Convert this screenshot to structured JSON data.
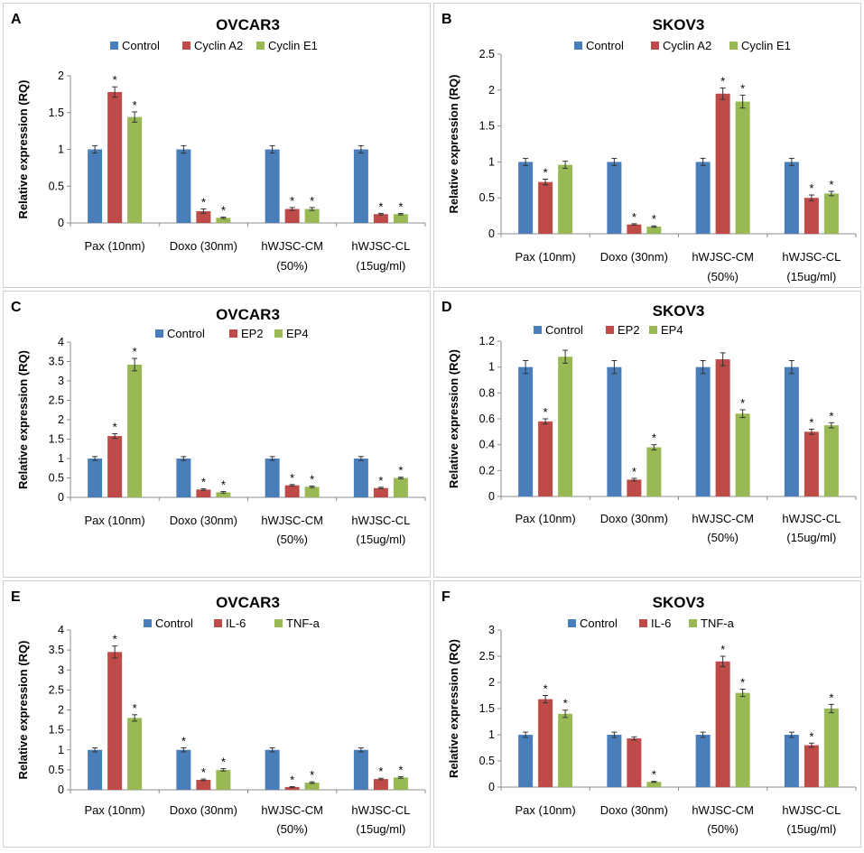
{
  "colors": {
    "Control": "#4A7EBB",
    "red": "#BE4B48",
    "green": "#98B954"
  },
  "categories": [
    [
      "Pax (10nm)"
    ],
    [
      "Doxo (30nm)"
    ],
    [
      "hWJSC-CM",
      "(50%)"
    ],
    [
      "hWJSC-CL",
      "(15ug/ml)"
    ]
  ],
  "chart_data": [
    {
      "letter": "A",
      "type": "bar",
      "title": "OVCAR3",
      "ylabel": "Relative expression (RQ)",
      "ylim": [
        0,
        2
      ],
      "ticks": [
        "0",
        "0.5",
        "1",
        "1.5",
        "2"
      ],
      "categories": [
        "Pax (10nm)",
        "Doxo (30nm)",
        "hWJSC-CM (50%)",
        "hWJSC-CL (15ug/ml)"
      ],
      "series": [
        {
          "name": "Control",
          "values": [
            1,
            1,
            1,
            1
          ],
          "err": [
            0.05,
            0.05,
            0.05,
            0.05
          ],
          "sig": [
            false,
            false,
            false,
            false
          ]
        },
        {
          "name": "Cyclin A2",
          "values": [
            1.78,
            0.16,
            0.19,
            0.12
          ],
          "err": [
            0.07,
            0.03,
            0.02,
            0.01
          ],
          "sig": [
            true,
            true,
            true,
            true
          ]
        },
        {
          "name": "Cyclin E1",
          "values": [
            1.44,
            0.07,
            0.19,
            0.12
          ],
          "err": [
            0.07,
            0.01,
            0.02,
            0.01
          ],
          "sig": [
            true,
            true,
            true,
            true
          ]
        }
      ]
    },
    {
      "letter": "B",
      "type": "bar",
      "title": "SKOV3",
      "ylabel": "Relative expression (RQ)",
      "ylim": [
        0,
        2.5
      ],
      "ticks": [
        "0",
        "0.5",
        "1",
        "1.5",
        "2",
        "2.5"
      ],
      "categories": [
        "Pax (10nm)",
        "Doxo (30nm)",
        "hWJSC-CM (50%)",
        "hWJSC-CL (15ug/ml)"
      ],
      "series": [
        {
          "name": "Control",
          "values": [
            1,
            1,
            1,
            1
          ],
          "err": [
            0.05,
            0.05,
            0.05,
            0.05
          ],
          "sig": [
            false,
            false,
            false,
            false
          ]
        },
        {
          "name": "Cyclin A2",
          "values": [
            0.72,
            0.13,
            1.95,
            0.5
          ],
          "err": [
            0.04,
            0.01,
            0.08,
            0.04
          ],
          "sig": [
            true,
            true,
            true,
            true
          ]
        },
        {
          "name": "Cyclin E1",
          "values": [
            0.96,
            0.1,
            1.84,
            0.56
          ],
          "err": [
            0.05,
            0.01,
            0.09,
            0.03
          ],
          "sig": [
            false,
            true,
            true,
            true
          ]
        }
      ]
    },
    {
      "letter": "C",
      "type": "bar",
      "title": "OVCAR3",
      "ylabel": "Relative expression (RQ)",
      "ylim": [
        0,
        4
      ],
      "ticks": [
        "0",
        "0.5",
        "1",
        "1.5",
        "2",
        "2.5",
        "3",
        "3.5",
        "4"
      ],
      "categories": [
        "Pax (10nm)",
        "Doxo (30nm)",
        "hWJSC-CM (50%)",
        "hWJSC-CL (15ug/ml)"
      ],
      "series": [
        {
          "name": "Control",
          "values": [
            1,
            1,
            1,
            1
          ],
          "err": [
            0.05,
            0.05,
            0.05,
            0.05
          ],
          "sig": [
            false,
            false,
            false,
            false
          ]
        },
        {
          "name": "EP2",
          "values": [
            1.58,
            0.2,
            0.31,
            0.24
          ],
          "err": [
            0.06,
            0.02,
            0.02,
            0.02
          ],
          "sig": [
            true,
            true,
            true,
            true
          ]
        },
        {
          "name": "EP4",
          "values": [
            3.42,
            0.13,
            0.27,
            0.5
          ],
          "err": [
            0.16,
            0.02,
            0.02,
            0.02
          ],
          "sig": [
            true,
            true,
            true,
            true
          ]
        }
      ]
    },
    {
      "letter": "D",
      "type": "bar",
      "title": "SKOV3",
      "ylabel": "Relative expression (RQ)",
      "ylim": [
        0,
        1.2
      ],
      "ticks": [
        "0",
        "0.2",
        "0.4",
        "0.6",
        "0.8",
        "1",
        "1.2"
      ],
      "categories": [
        "Pax (10nm)",
        "Doxo (30nm)",
        "hWJSC-CM (50%)",
        "hWJSC-CL (15ug/ml)"
      ],
      "series": [
        {
          "name": "Control",
          "values": [
            1,
            1,
            1,
            1
          ],
          "err": [
            0.05,
            0.05,
            0.05,
            0.05
          ],
          "sig": [
            false,
            false,
            false,
            false
          ]
        },
        {
          "name": "EP2",
          "values": [
            0.58,
            0.13,
            1.06,
            0.5
          ],
          "err": [
            0.02,
            0.01,
            0.05,
            0.02
          ],
          "sig": [
            true,
            true,
            false,
            true
          ]
        },
        {
          "name": "EP4",
          "values": [
            1.08,
            0.38,
            0.64,
            0.55
          ],
          "err": [
            0.05,
            0.02,
            0.03,
            0.02
          ],
          "sig": [
            false,
            true,
            true,
            true
          ]
        }
      ]
    },
    {
      "letter": "E",
      "type": "bar",
      "title": "OVCAR3",
      "ylabel": "Relative expression (RQ)",
      "ylim": [
        0,
        4
      ],
      "ticks": [
        "0",
        "0.5",
        "1",
        "1.5",
        "2",
        "2.5",
        "3",
        "3.5",
        "4"
      ],
      "categories": [
        "Pax (10nm)",
        "Doxo (30nm)",
        "hWJSC-CM (50%)",
        "hWJSC-CL (15ug/ml)"
      ],
      "series": [
        {
          "name": "Control",
          "values": [
            1,
            1,
            1,
            1
          ],
          "err": [
            0.05,
            0.05,
            0.05,
            0.05
          ],
          "sig": [
            false,
            true,
            false,
            false
          ]
        },
        {
          "name": "IL-6",
          "values": [
            3.45,
            0.25,
            0.07,
            0.27
          ],
          "err": [
            0.15,
            0.02,
            0.01,
            0.02
          ],
          "sig": [
            true,
            true,
            true,
            true
          ]
        },
        {
          "name": "TNF-a",
          "values": [
            1.8,
            0.5,
            0.18,
            0.31
          ],
          "err": [
            0.08,
            0.03,
            0.02,
            0.02
          ],
          "sig": [
            true,
            true,
            true,
            true
          ]
        }
      ]
    },
    {
      "letter": "F",
      "type": "bar",
      "title": "SKOV3",
      "ylabel": "Relative expression (RQ)",
      "ylim": [
        0,
        3
      ],
      "ticks": [
        "0",
        "0.5",
        "1",
        "1.5",
        "2",
        "2.5",
        "3"
      ],
      "categories": [
        "Pax (10nm)",
        "Doxo (30nm)",
        "hWJSC-CM (50%)",
        "hWJSC-CL (15ug/ml)"
      ],
      "series": [
        {
          "name": "Control",
          "values": [
            1,
            1,
            1,
            1
          ],
          "err": [
            0.05,
            0.05,
            0.05,
            0.05
          ],
          "sig": [
            false,
            false,
            false,
            false
          ]
        },
        {
          "name": "IL-6",
          "values": [
            1.68,
            0.93,
            2.4,
            0.8
          ],
          "err": [
            0.07,
            0.03,
            0.1,
            0.04
          ],
          "sig": [
            true,
            false,
            true,
            true
          ]
        },
        {
          "name": "TNF-a",
          "values": [
            1.4,
            0.1,
            1.8,
            1.5
          ],
          "err": [
            0.07,
            0.01,
            0.07,
            0.08
          ],
          "sig": [
            true,
            true,
            true,
            true
          ]
        }
      ]
    }
  ]
}
